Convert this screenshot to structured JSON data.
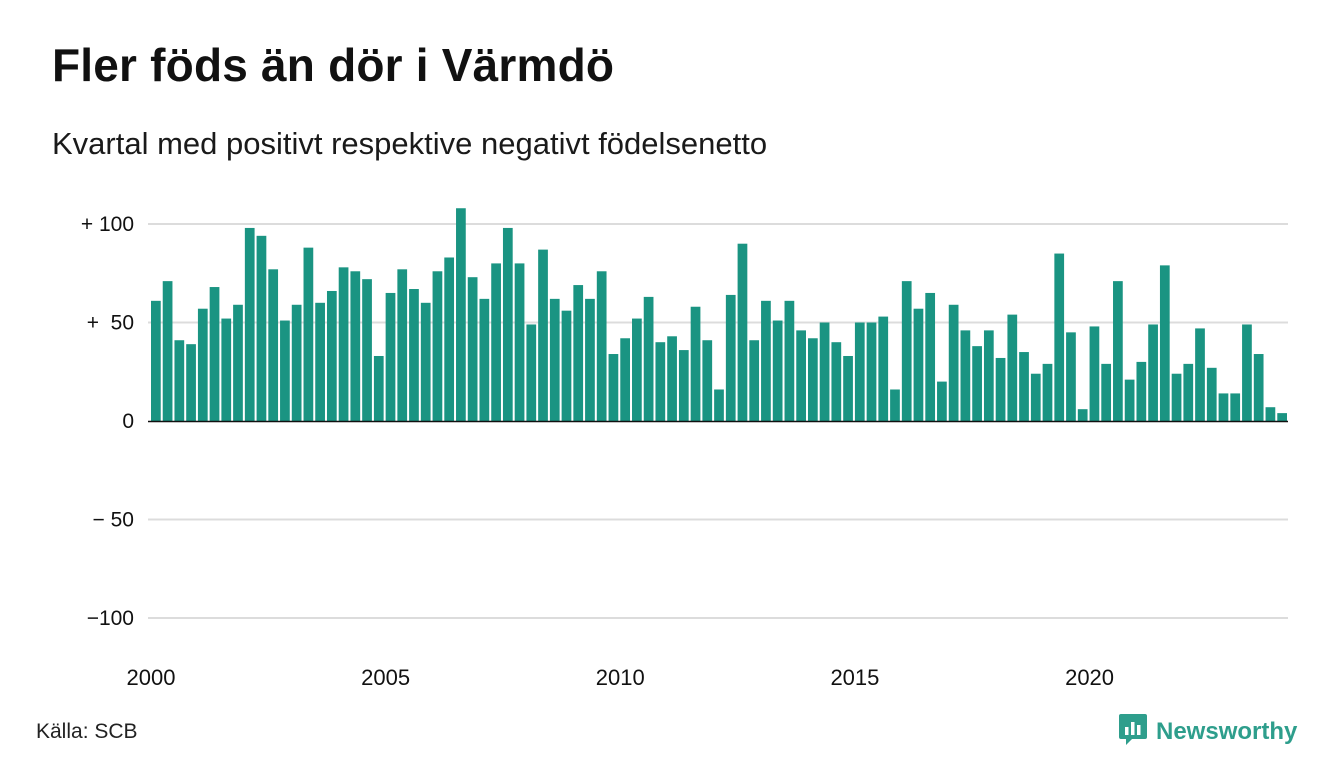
{
  "title": "Fler föds än dör i Värmdö",
  "subtitle": "Kvartal med positivt respektive negativt födelsenetto",
  "source": "Källa: SCB",
  "brand": {
    "name": "Newsworthy",
    "icon": "newsworthy-logo-icon",
    "color": "#2e9e8c"
  },
  "chart_data": {
    "type": "bar",
    "bar_color": "#1a9482",
    "grid": true,
    "ylim": [
      -120,
      110
    ],
    "y_ticks": [
      {
        "value": 100,
        "label": "+ 100"
      },
      {
        "value": 50,
        "label": "+  50"
      },
      {
        "value": 0,
        "label": "0"
      },
      {
        "value": -50,
        "label": "− 50"
      },
      {
        "value": -100,
        "label": "−100"
      }
    ],
    "x_ticks": [
      {
        "value": 2000,
        "label": "2000"
      },
      {
        "value": 2005,
        "label": "2005"
      },
      {
        "value": 2010,
        "label": "2010"
      },
      {
        "value": 2015,
        "label": "2015"
      },
      {
        "value": 2020,
        "label": "2020"
      }
    ],
    "x_start": 2000,
    "x_end": 2024.25,
    "x_unit": "quarter",
    "values": [
      61,
      71,
      41,
      39,
      57,
      68,
      52,
      59,
      98,
      94,
      77,
      51,
      59,
      88,
      60,
      66,
      78,
      76,
      72,
      33,
      65,
      77,
      67,
      60,
      76,
      83,
      108,
      73,
      62,
      80,
      98,
      80,
      49,
      87,
      62,
      56,
      69,
      62,
      76,
      34,
      42,
      52,
      63,
      40,
      43,
      36,
      58,
      41,
      16,
      64,
      90,
      41,
      61,
      51,
      61,
      46,
      42,
      50,
      40,
      33,
      50,
      50,
      53,
      16,
      71,
      57,
      65,
      20,
      59,
      46,
      38,
      46,
      32,
      54,
      35,
      24,
      29,
      85,
      45,
      6,
      48,
      29,
      71,
      21,
      30,
      49,
      79,
      24,
      29,
      47,
      27,
      14,
      14,
      49,
      34,
      7,
      4
    ]
  }
}
